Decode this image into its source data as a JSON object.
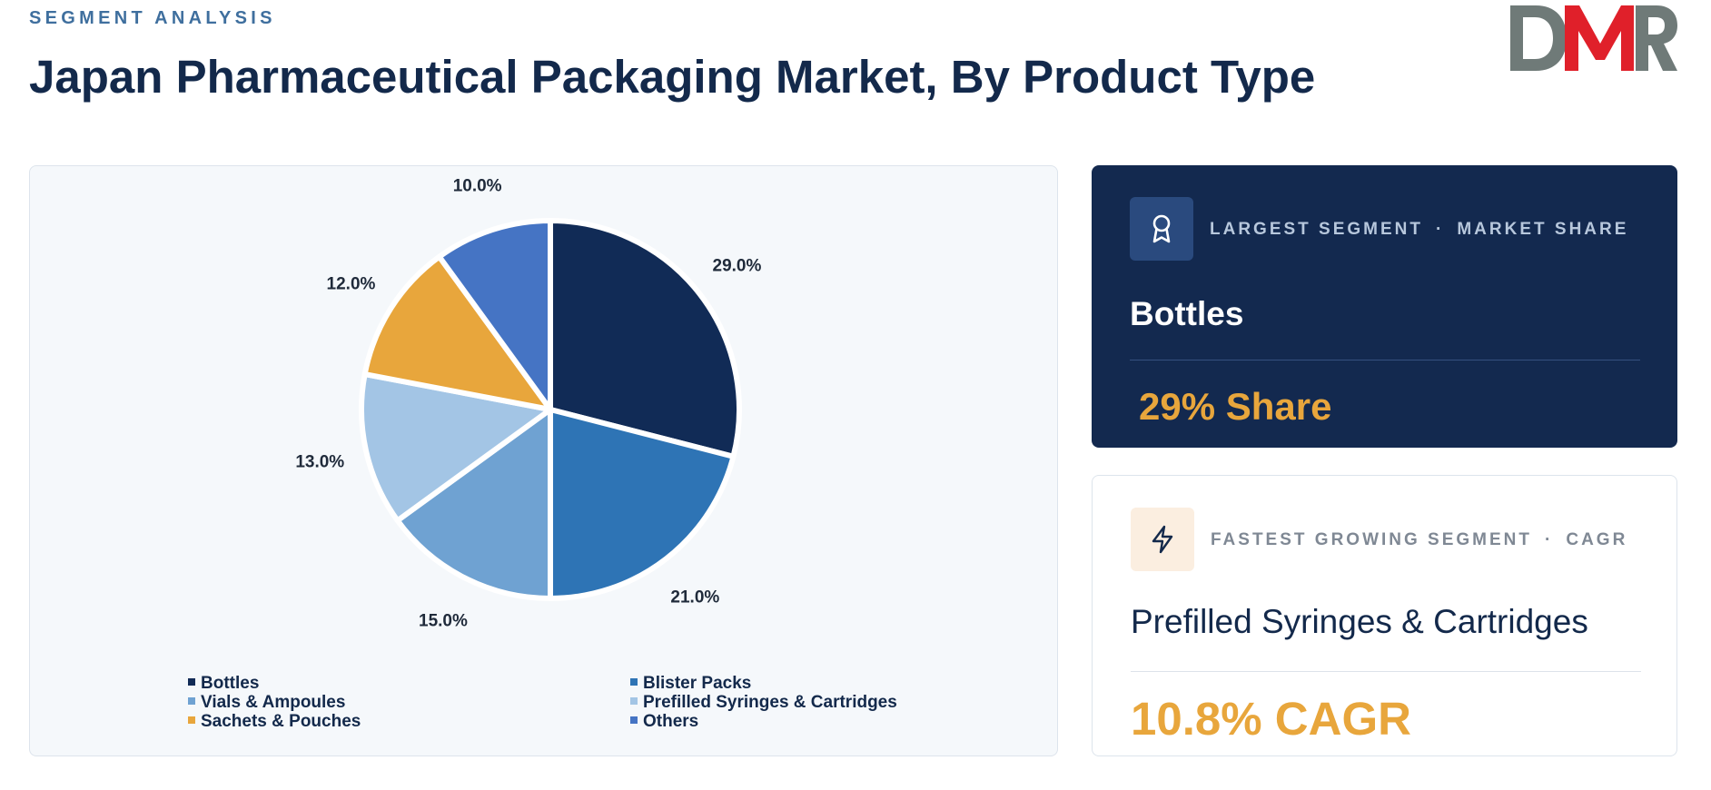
{
  "header": {
    "eyebrow": "SEGMENT ANALYSIS",
    "title": "Japan Pharmaceutical Packaging Market, By Product Type"
  },
  "logo": {
    "text": "DMR",
    "colors": {
      "d": "#6f7a78",
      "m": "#e0202a",
      "r": "#6f7a78"
    }
  },
  "chart_data": {
    "type": "pie",
    "title": "",
    "start_angle_deg": 0,
    "direction": "clockwise",
    "categories": [
      "Bottles",
      "Blister Packs",
      "Vials & Ampoules",
      "Prefilled Syringes & Cartridges",
      "Sachets & Pouches",
      "Others"
    ],
    "values": [
      29.0,
      21.0,
      15.0,
      13.0,
      12.0,
      10.0
    ],
    "labels": [
      "29.0%",
      "21.0%",
      "15.0%",
      "13.0%",
      "12.0%",
      "10.0%"
    ],
    "colors": [
      "#112b56",
      "#2e74b5",
      "#6fa2d2",
      "#a3c5e5",
      "#e8a63c",
      "#4574c4"
    ],
    "legend_order": [
      "Bottles",
      "Blister Packs",
      "Vials & Ampoules",
      "Prefilled Syringes & Cartridges",
      "Sachets & Pouches",
      "Others"
    ],
    "legend_position": "bottom"
  },
  "largest_segment": {
    "icon": "award-icon",
    "label": "LARGEST SEGMENT",
    "sep": "·",
    "metric_label": "MARKET SHARE",
    "name": "Bottles",
    "value": "29% Share"
  },
  "fastest_segment": {
    "icon": "lightning-icon",
    "label": "FASTEST GROWING SEGMENT",
    "sep": "·",
    "metric_label": "CAGR",
    "name": "Prefilled Syringes & Cartridges",
    "value": "10.8% CAGR"
  },
  "colors": {
    "navy": "#13294b",
    "accent": "#e8a63c"
  }
}
